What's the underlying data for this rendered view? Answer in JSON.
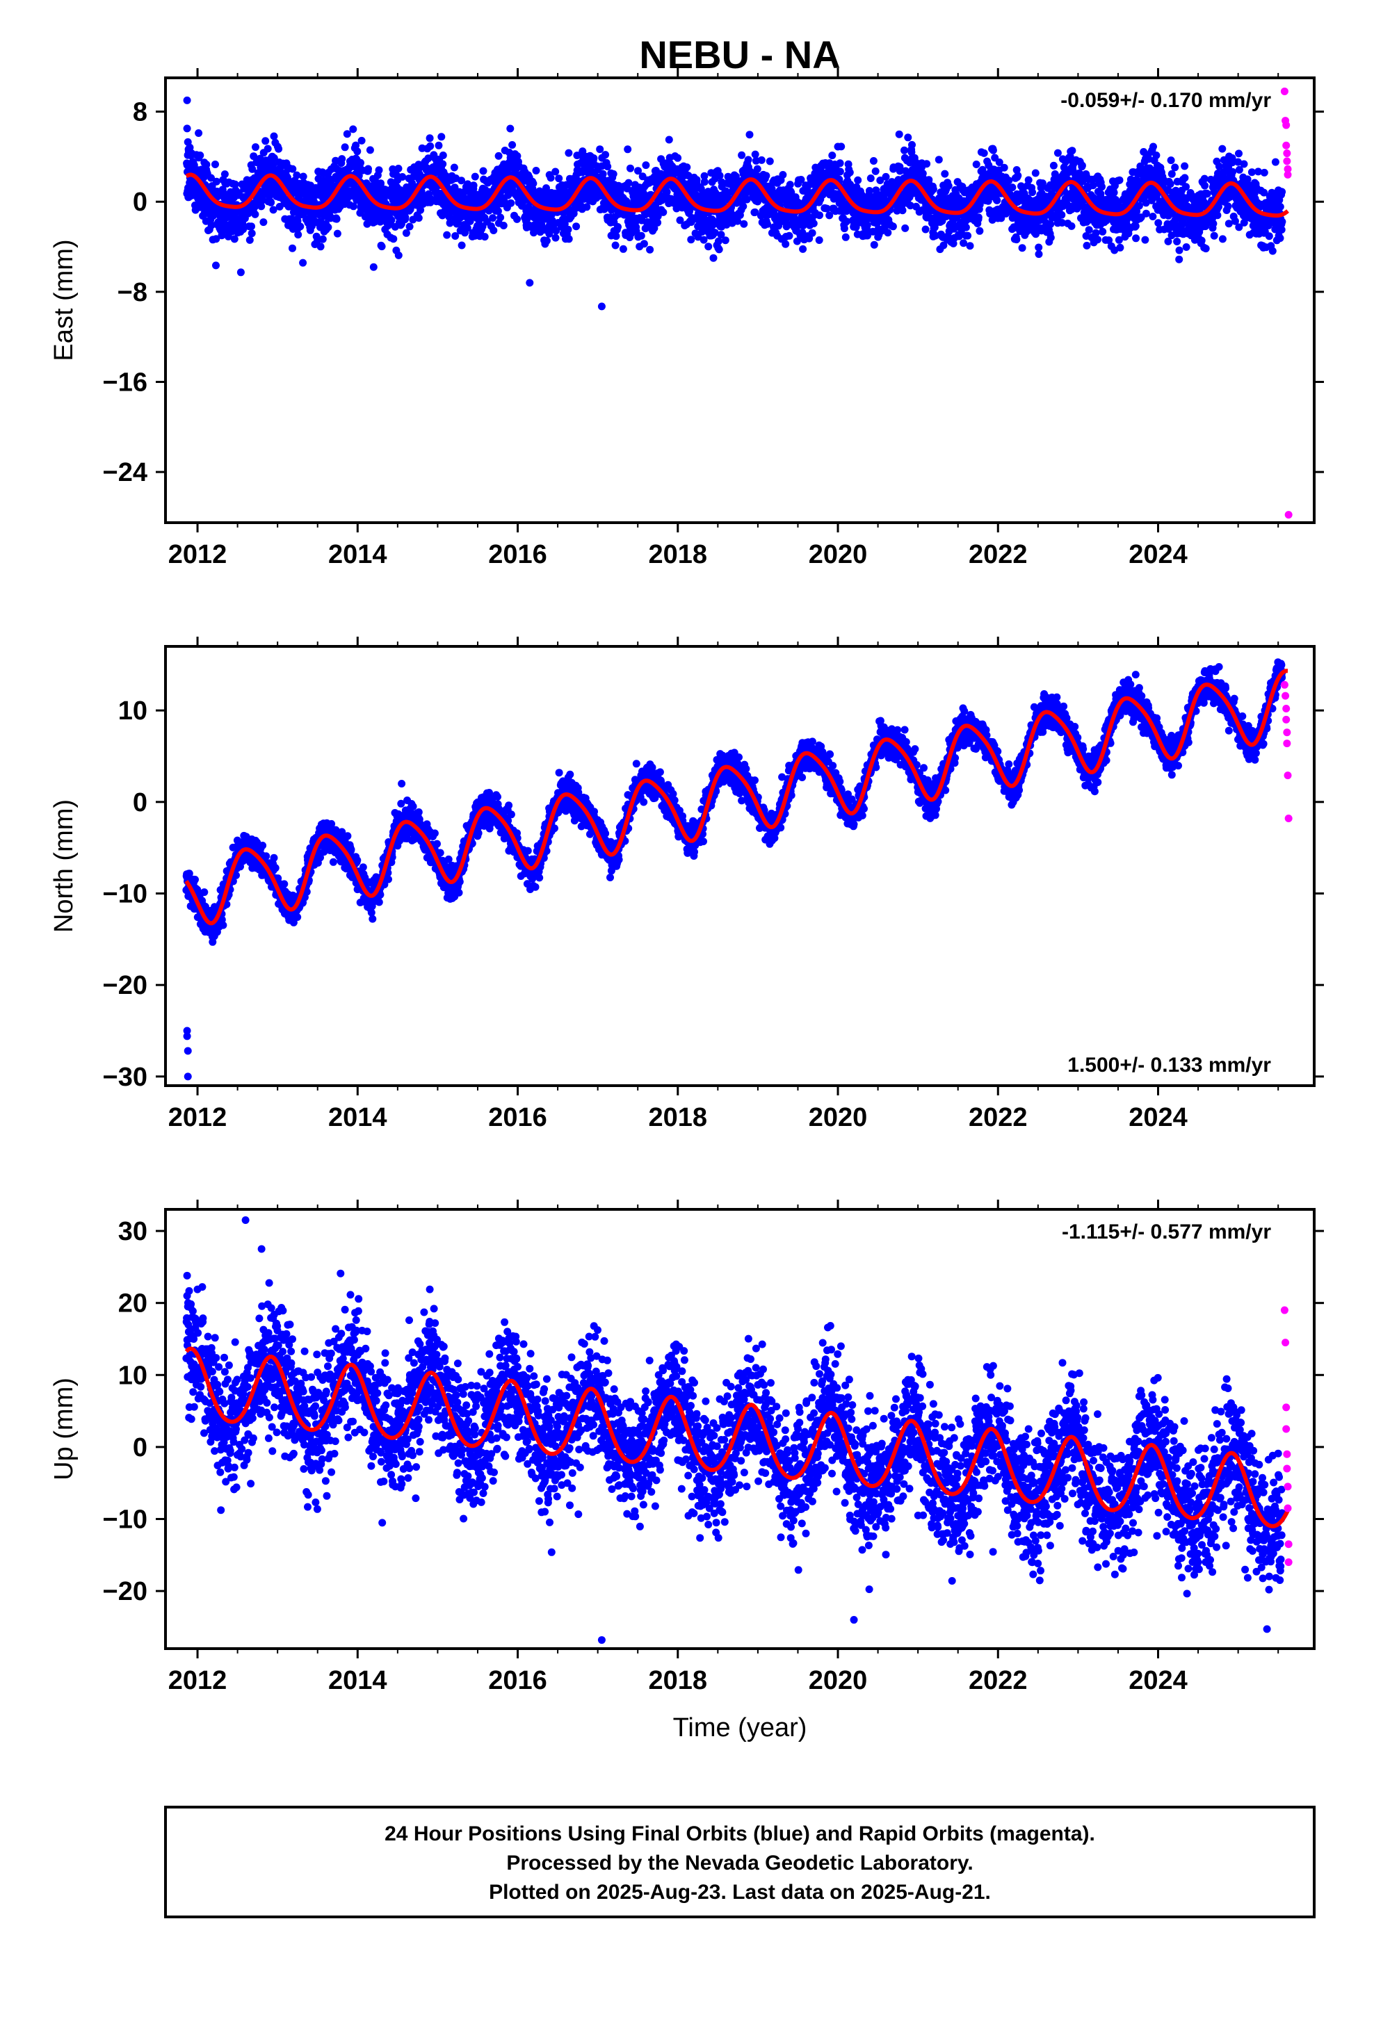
{
  "title": "NEBU - NA",
  "footer": {
    "lines": [
      "24 Hour Positions Using Final Orbits (blue) and Rapid Orbits (magenta).",
      "Processed by the Nevada Geodetic Laboratory.",
      "Plotted on 2025-Aug-23. Last data on 2025-Aug-21."
    ]
  },
  "colors": {
    "final_orbits": "#0000ff",
    "rapid_orbits": "#ff00ff",
    "model_fit": "#ff0000",
    "frame": "#000000"
  },
  "chart_data": [
    {
      "type": "scatter",
      "component": "east",
      "ylabel": "East (mm)",
      "xlabel": "",
      "xlim": [
        2011.6,
        2025.95
      ],
      "ylim": [
        -28.5,
        11
      ],
      "xticks": [
        2012,
        2014,
        2016,
        2018,
        2020,
        2022,
        2024
      ],
      "yticks": [
        8,
        0,
        -8,
        -16,
        -24
      ],
      "ytick_labels": [
        "8",
        "0",
        "−8",
        "−16",
        "−24"
      ],
      "rate_label": "-0.059+/- 0.170 mm/yr",
      "rate_position": "top-right",
      "model": {
        "rate": -0.059,
        "annual_amp": 1.4,
        "annual_phase": 0.5,
        "semiannual_amp": 0.3,
        "semiannual_phase": 1.2,
        "offset": 0.3,
        "ref_year": 2018.7
      },
      "noise_sd": 1.4,
      "data_start": 2011.86,
      "data_end": 2025.55,
      "outliers": [
        {
          "x": 2011.87,
          "y": 9.0
        },
        {
          "x": 2011.87,
          "y": 6.5
        },
        {
          "x": 2011.88,
          "y": 5.3
        },
        {
          "x": 2016.15,
          "y": -7.2
        },
        {
          "x": 2017.05,
          "y": -9.3
        },
        {
          "x": 2014.2,
          "y": -5.8
        }
      ],
      "rapid_points": [
        {
          "x": 2025.58,
          "y": 9.8
        },
        {
          "x": 2025.59,
          "y": 7.2
        },
        {
          "x": 2025.6,
          "y": 6.8
        },
        {
          "x": 2025.6,
          "y": 5.0
        },
        {
          "x": 2025.61,
          "y": 4.3
        },
        {
          "x": 2025.61,
          "y": 3.6
        },
        {
          "x": 2025.62,
          "y": 2.9
        },
        {
          "x": 2025.62,
          "y": 2.4
        },
        {
          "x": 2025.63,
          "y": -27.8
        }
      ]
    },
    {
      "type": "scatter",
      "component": "north",
      "ylabel": "North (mm)",
      "xlabel": "",
      "xlim": [
        2011.6,
        2025.95
      ],
      "ylim": [
        -31,
        17
      ],
      "xticks": [
        2012,
        2014,
        2016,
        2018,
        2020,
        2022,
        2024
      ],
      "yticks": [
        10,
        0,
        -10,
        -20,
        -30
      ],
      "ytick_labels": [
        "10",
        "0",
        "−10",
        "−20",
        "−30"
      ],
      "rate_label": "1.500+/- 0.133 mm/yr",
      "rate_position": "bottom-right",
      "model": {
        "rate": 1.5,
        "annual_amp": 3.6,
        "annual_phase": 2.2,
        "semiannual_amp": 0.6,
        "semiannual_phase": 0.4,
        "offset": 0.6,
        "ref_year": 2018.7
      },
      "noise_sd": 0.9,
      "data_start": 2011.86,
      "data_end": 2025.55,
      "outliers": [
        {
          "x": 2011.87,
          "y": -25.0
        },
        {
          "x": 2011.87,
          "y": -25.6
        },
        {
          "x": 2011.88,
          "y": -27.2
        },
        {
          "x": 2011.88,
          "y": -30.0
        },
        {
          "x": 2014.55,
          "y": 2.0
        }
      ],
      "rapid_points": [
        {
          "x": 2025.58,
          "y": 12.8
        },
        {
          "x": 2025.59,
          "y": 11.6
        },
        {
          "x": 2025.6,
          "y": 10.2
        },
        {
          "x": 2025.6,
          "y": 9.0
        },
        {
          "x": 2025.61,
          "y": 7.6
        },
        {
          "x": 2025.61,
          "y": 6.4
        },
        {
          "x": 2025.62,
          "y": 2.9
        },
        {
          "x": 2025.63,
          "y": -1.8
        }
      ]
    },
    {
      "type": "scatter",
      "component": "up",
      "ylabel": "Up (mm)",
      "xlabel": "Time (year)",
      "xlim": [
        2011.6,
        2025.95
      ],
      "ylim": [
        -28,
        33
      ],
      "xticks": [
        2012,
        2014,
        2016,
        2018,
        2020,
        2022,
        2024
      ],
      "yticks": [
        30,
        20,
        10,
        0,
        -10,
        -20
      ],
      "ytick_labels": [
        "30",
        "20",
        "10",
        "0",
        "−10",
        "−20"
      ],
      "rate_label": "-1.115+/- 0.577 mm/yr",
      "rate_position": "top-right",
      "model": {
        "rate": -1.115,
        "annual_amp": 4.8,
        "annual_phase": 0.5,
        "semiannual_amp": 0.5,
        "semiannual_phase": 1.0,
        "offset": 0.8,
        "ref_year": 2018.7
      },
      "noise_sd": 4.3,
      "data_start": 2011.86,
      "data_end": 2025.55,
      "outliers": [
        {
          "x": 2011.87,
          "y": 23.8
        },
        {
          "x": 2011.87,
          "y": 21.0
        },
        {
          "x": 2011.88,
          "y": 19.5
        },
        {
          "x": 2012.6,
          "y": 31.5
        },
        {
          "x": 2012.8,
          "y": 27.5
        },
        {
          "x": 2017.05,
          "y": -26.8
        },
        {
          "x": 2020.2,
          "y": -24.0
        }
      ],
      "rapid_points": [
        {
          "x": 2025.58,
          "y": 19.0
        },
        {
          "x": 2025.59,
          "y": 14.5
        },
        {
          "x": 2025.6,
          "y": 5.5
        },
        {
          "x": 2025.6,
          "y": 2.5
        },
        {
          "x": 2025.61,
          "y": -1.0
        },
        {
          "x": 2025.61,
          "y": -3.0
        },
        {
          "x": 2025.62,
          "y": -5.5
        },
        {
          "x": 2025.62,
          "y": -8.5
        },
        {
          "x": 2025.63,
          "y": -13.5
        },
        {
          "x": 2025.63,
          "y": -16.0
        }
      ]
    }
  ]
}
